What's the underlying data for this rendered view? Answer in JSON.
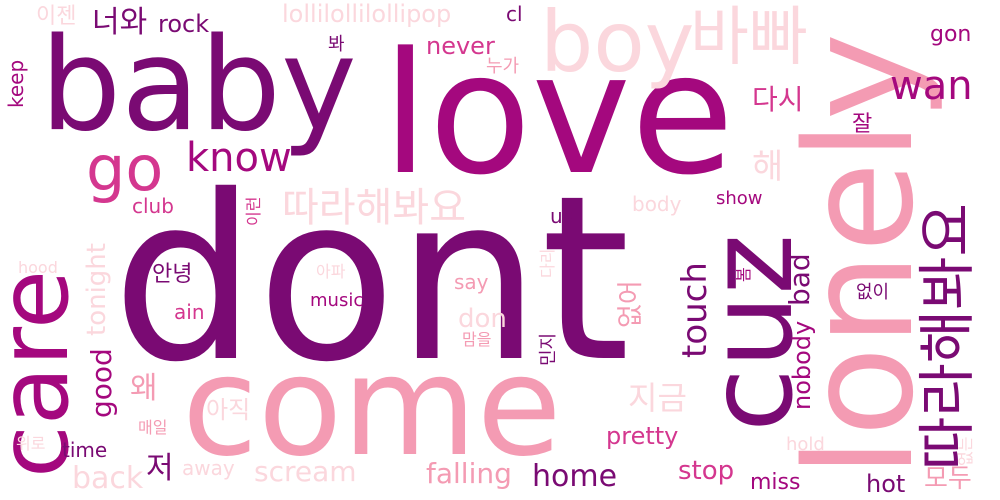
{
  "palette": {
    "c1": "#7a0a73",
    "c2": "#a4087e",
    "c3": "#d4378f",
    "c4": "#f49bb3",
    "c5": "#fbd7dd",
    "c6": "#fde6e8"
  },
  "words": [
    "dont",
    "love",
    "come",
    "baby",
    "care",
    "cuz",
    "lonely",
    "boy",
    "바빠",
    "따라해봐요",
    "따라해봐요",
    "go",
    "know",
    "wan",
    "gon",
    "너와",
    "rock",
    "lollilollilollipop",
    "cl",
    "이젠",
    "잘",
    "봐",
    "누가",
    "keep",
    "never",
    "다시",
    "해",
    "club",
    "이런",
    "body",
    "show",
    "us",
    "touch",
    "bad",
    "nobody",
    "good",
    "tonight",
    "hood",
    "안녕",
    "없어",
    "아파",
    "say",
    "don",
    "music",
    "ain",
    "다리",
    "봄",
    "없이",
    "맘을",
    "민지",
    "왜",
    "지금",
    "아직",
    "pretty",
    "매일",
    "위로",
    "time",
    "저",
    "away",
    "scream",
    "back",
    "falling",
    "home",
    "stop",
    "miss",
    "hot",
    "hold",
    "없는",
    "모두"
  ]
}
